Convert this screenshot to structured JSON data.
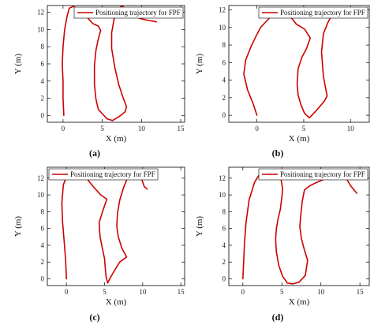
{
  "chart_data": [
    {
      "type": "line",
      "panel_label": "(a)",
      "xlabel": "X (m)",
      "ylabel": "Y (m)",
      "xlim": [
        -2,
        15.5
      ],
      "ylim": [
        -0.8,
        12.8
      ],
      "xticks": [
        0,
        5,
        10,
        15
      ],
      "yticks": [
        0,
        2,
        4,
        6,
        8,
        10,
        12
      ],
      "color": "#cc0000",
      "legend": {
        "label": "Positioning trajectory for FPF",
        "position": "top-right"
      },
      "series": [
        {
          "name": "Positioning trajectory for FPF",
          "x": [
            0.1,
            0.0,
            0.0,
            -0.1,
            0.0,
            0.2,
            0.5,
            0.8,
            1.3,
            2.0,
            2.9,
            3.8,
            4.5,
            4.8,
            4.5,
            4.2,
            4.0,
            4.0,
            4.2,
            4.5,
            5.0,
            5.6,
            6.3,
            7.2,
            7.9,
            8.1,
            7.6,
            7.1,
            6.6,
            6.2,
            6.2,
            6.5,
            6.9,
            7.2,
            7.4,
            7.6,
            7.9,
            8.5,
            9.1,
            9.8,
            10.7,
            11.9
          ],
          "y": [
            0.0,
            2.0,
            4.0,
            6.0,
            8.0,
            10.0,
            11.5,
            12.5,
            12.7,
            12.4,
            11.6,
            10.7,
            10.4,
            9.9,
            8.9,
            7.6,
            5.8,
            3.6,
            1.9,
            0.7,
            0.2,
            -0.4,
            -0.6,
            -0.1,
            0.4,
            1.0,
            2.2,
            3.6,
            5.6,
            7.8,
            9.6,
            11.2,
            12.1,
            12.5,
            12.7,
            12.7,
            12.5,
            12.1,
            11.6,
            11.3,
            11.1,
            10.9
          ]
        }
      ]
    },
    {
      "type": "line",
      "panel_label": "(b)",
      "xlabel": "X (m)",
      "ylabel": "Y (m)",
      "xlim": [
        -3,
        12
      ],
      "ylim": [
        -0.8,
        12.5
      ],
      "xticks": [
        0,
        5,
        10
      ],
      "yticks": [
        0,
        2,
        4,
        6,
        8,
        10,
        12
      ],
      "color": "#cc0000",
      "legend": {
        "label": "Positioning trajectory for FPF",
        "position": "top-right"
      },
      "series": [
        {
          "name": "Positioning trajectory for FPF",
          "x": [
            0.0,
            -0.4,
            -1.0,
            -1.4,
            -1.2,
            -0.6,
            0.0,
            0.4,
            1.0,
            1.8,
            2.5,
            3.1,
            3.6,
            4.2,
            5.1,
            5.7,
            5.3,
            4.8,
            4.4,
            4.3,
            4.4,
            4.7,
            5.1,
            5.6,
            6.4,
            7.2,
            7.5,
            7.1,
            6.9,
            7.1,
            7.6,
            8.3
          ],
          "y": [
            0.0,
            1.3,
            2.9,
            4.7,
            6.3,
            7.9,
            9.2,
            10.0,
            10.7,
            11.6,
            12.1,
            11.9,
            11.2,
            10.4,
            9.8,
            8.8,
            7.6,
            6.6,
            5.3,
            3.6,
            2.3,
            1.2,
            0.2,
            -0.3,
            0.6,
            1.6,
            2.2,
            4.4,
            7.2,
            9.3,
            10.6,
            12.0
          ]
        }
      ]
    },
    {
      "type": "line",
      "panel_label": "(c)",
      "xlabel": "X (m)",
      "ylabel": "Y (m)",
      "xlim": [
        -2.5,
        15.5
      ],
      "ylim": [
        -0.8,
        13.3
      ],
      "xticks": [
        0,
        5,
        10,
        15
      ],
      "yticks": [
        0,
        2,
        4,
        6,
        8,
        10,
        12
      ],
      "color": "#cc0000",
      "legend": {
        "label": "Positioning trajectory for FPF",
        "position": "top-left"
      },
      "series": [
        {
          "name": "Positioning trajectory for FPF",
          "x": [
            0.0,
            -0.1,
            -0.3,
            -0.5,
            -0.6,
            -0.4,
            0.1,
            0.9,
            1.8,
            2.7,
            3.6,
            4.5,
            5.3,
            4.7,
            4.3,
            4.4,
            4.7,
            5.0,
            5.1,
            5.2,
            5.4,
            5.8,
            6.3,
            7.0,
            7.9,
            7.3,
            6.8,
            6.6,
            6.7,
            7.0,
            7.5,
            8.1,
            8.8,
            9.5,
            9.9,
            10.2,
            10.6
          ],
          "y": [
            0.0,
            2.2,
            4.5,
            6.8,
            9.0,
            11.2,
            12.4,
            12.9,
            12.7,
            11.9,
            10.9,
            10.0,
            9.5,
            7.9,
            6.7,
            5.1,
            3.7,
            2.4,
            1.2,
            0.3,
            -0.5,
            0.2,
            1.0,
            2.0,
            2.6,
            3.6,
            5.0,
            6.3,
            7.8,
            9.4,
            10.9,
            12.2,
            12.9,
            12.7,
            11.8,
            11.0,
            10.7
          ]
        }
      ]
    },
    {
      "type": "line",
      "panel_label": "(d)",
      "xlabel": "X (m)",
      "ylabel": "Y (m)",
      "xlim": [
        -1.8,
        16.2
      ],
      "ylim": [
        -0.8,
        13.3
      ],
      "xticks": [
        0,
        5,
        10,
        15
      ],
      "yticks": [
        0,
        2,
        4,
        6,
        8,
        10,
        12
      ],
      "color": "#cc0000",
      "legend": {
        "label": "Positioning trajectory for FPF",
        "position": "top-right"
      },
      "series": [
        {
          "name": "Positioning trajectory for FPF",
          "x": [
            0.0,
            0.1,
            0.2,
            0.4,
            0.8,
            1.5,
            2.3,
            3.0,
            3.8,
            4.4,
            4.9,
            5.1,
            5.0,
            4.8,
            4.5,
            4.3,
            4.2,
            4.3,
            4.6,
            5.1,
            5.7,
            6.4,
            7.2,
            8.0,
            8.3,
            7.9,
            7.5,
            7.3,
            7.4,
            7.6,
            7.9,
            8.6,
            9.5,
            10.5,
            11.5,
            12.3,
            12.9,
            13.3,
            13.8,
            14.6
          ],
          "y": [
            0.0,
            2.0,
            4.2,
            6.7,
            9.4,
            11.5,
            12.7,
            13.0,
            12.9,
            12.6,
            11.8,
            10.7,
            9.7,
            8.3,
            7.1,
            6.0,
            4.7,
            3.2,
            1.6,
            0.3,
            -0.5,
            -0.6,
            -0.4,
            0.4,
            2.2,
            3.4,
            4.8,
            6.2,
            7.4,
            9.2,
            10.6,
            11.1,
            11.5,
            11.9,
            12.2,
            12.4,
            12.4,
            11.9,
            11.1,
            10.2
          ]
        }
      ]
    }
  ]
}
